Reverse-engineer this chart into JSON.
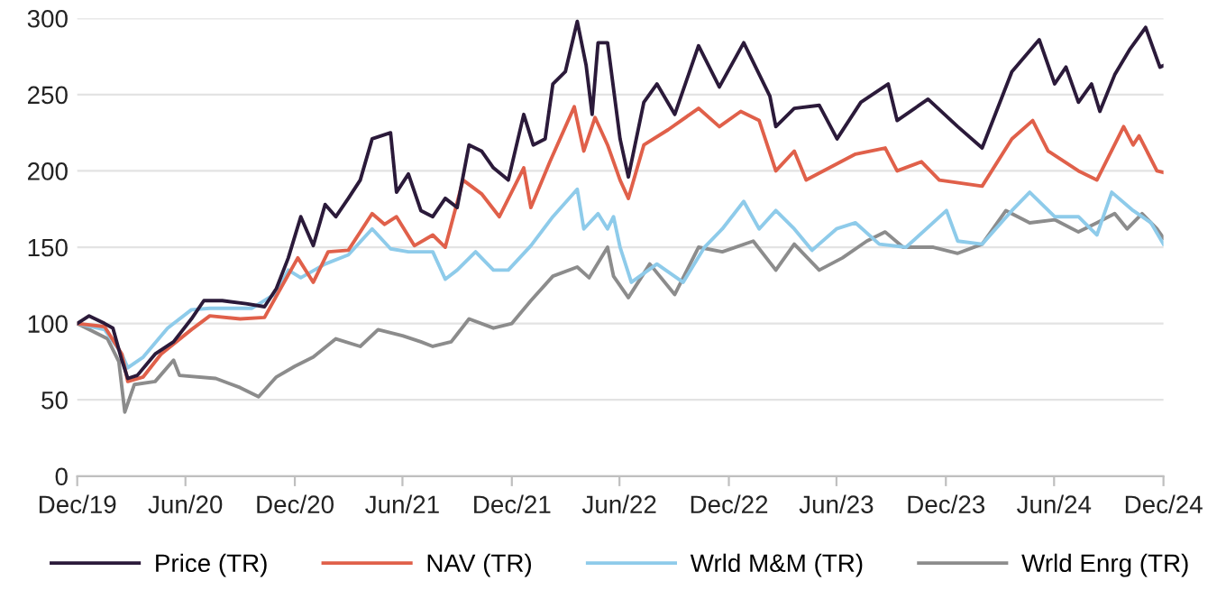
{
  "chart_data": {
    "type": "line",
    "xlim": [
      "2019-12-31",
      "2024-12-31"
    ],
    "xticks": [
      {
        "value": "2019-12-31",
        "label": "Dec/19"
      },
      {
        "value": "2020-06-30",
        "label": "Jun/20"
      },
      {
        "value": "2020-12-31",
        "label": "Dec/20"
      },
      {
        "value": "2021-06-30",
        "label": "Jun/21"
      },
      {
        "value": "2021-12-31",
        "label": "Dec/21"
      },
      {
        "value": "2022-06-30",
        "label": "Jun/22"
      },
      {
        "value": "2022-12-31",
        "label": "Dec/22"
      },
      {
        "value": "2023-06-30",
        "label": "Jun/23"
      },
      {
        "value": "2023-12-31",
        "label": "Dec/23"
      },
      {
        "value": "2024-06-30",
        "label": "Jun/24"
      },
      {
        "value": "2024-12-31",
        "label": "Dec/24"
      }
    ],
    "ylim": [
      0,
      300
    ],
    "yticks": [
      0,
      50,
      100,
      150,
      200,
      250,
      300
    ],
    "grid": "y",
    "legend": "bottom",
    "marker": "none",
    "line_style": "solid",
    "series": [
      {
        "name": "Price (TR)",
        "color": "#2b1a3a",
        "x": [
          "2019-12-31",
          "2020-01-20",
          "2020-02-15",
          "2020-02-29",
          "2020-03-15",
          "2020-03-25",
          "2020-04-10",
          "2020-05-10",
          "2020-06-10",
          "2020-07-10",
          "2020-07-31",
          "2020-08-31",
          "2020-10-10",
          "2020-11-10",
          "2020-11-30",
          "2020-12-20",
          "2021-01-10",
          "2021-01-31",
          "2021-02-20",
          "2021-03-10",
          "2021-03-31",
          "2021-04-20",
          "2021-05-10",
          "2021-06-10",
          "2021-06-20",
          "2021-07-10",
          "2021-07-31",
          "2021-08-20",
          "2021-09-10",
          "2021-09-30",
          "2021-10-20",
          "2021-11-10",
          "2021-11-30",
          "2021-12-25",
          "2022-01-20",
          "2022-02-05",
          "2022-02-25",
          "2022-03-10",
          "2022-03-31",
          "2022-04-20",
          "2022-05-05",
          "2022-05-15",
          "2022-05-25",
          "2022-06-10",
          "2022-07-01",
          "2022-07-15",
          "2022-08-10",
          "2022-09-01",
          "2022-10-01",
          "2022-11-10",
          "2022-12-15",
          "2023-01-25",
          "2023-03-10",
          "2023-03-20",
          "2023-04-20",
          "2023-06-01",
          "2023-07-01",
          "2023-08-10",
          "2023-09-25",
          "2023-10-10",
          "2023-12-01",
          "2024-01-20",
          "2024-03-01",
          "2024-04-20",
          "2024-06-05",
          "2024-07-01",
          "2024-07-20",
          "2024-08-10",
          "2024-09-01",
          "2024-09-15",
          "2024-10-10",
          "2024-11-05",
          "2024-12-01",
          "2024-12-25",
          "2024-12-31"
        ],
        "values": [
          100,
          105,
          100,
          97,
          76,
          64,
          66,
          80,
          88,
          103,
          115,
          115,
          113,
          111,
          123,
          143,
          170,
          151,
          178,
          170,
          182,
          194,
          221,
          225,
          186,
          198,
          174,
          170,
          182,
          176,
          217,
          213,
          202,
          194,
          237,
          217,
          221,
          257,
          265,
          298,
          269,
          237,
          284,
          284,
          221,
          196,
          245,
          257,
          237,
          282,
          255,
          284,
          249,
          229,
          241,
          243,
          221,
          245,
          257,
          233,
          247,
          229,
          215,
          265,
          286,
          257,
          268,
          245,
          257,
          239,
          263,
          280,
          294,
          268,
          269
        ]
      },
      {
        "name": "NAV (TR)",
        "color": "#e0604a",
        "x": [
          "2019-12-31",
          "2020-02-15",
          "2020-03-15",
          "2020-03-25",
          "2020-04-20",
          "2020-05-20",
          "2020-07-10",
          "2020-08-10",
          "2020-09-30",
          "2020-11-10",
          "2020-12-10",
          "2021-01-05",
          "2021-01-31",
          "2021-02-25",
          "2021-03-31",
          "2021-05-10",
          "2021-05-31",
          "2021-06-20",
          "2021-07-20",
          "2021-08-20",
          "2021-09-10",
          "2021-10-10",
          "2021-11-10",
          "2021-12-10",
          "2022-01-20",
          "2022-02-01",
          "2022-03-05",
          "2022-04-15",
          "2022-05-01",
          "2022-05-20",
          "2022-06-10",
          "2022-07-01",
          "2022-07-15",
          "2022-08-10",
          "2022-09-20",
          "2022-11-10",
          "2022-12-15",
          "2023-01-20",
          "2023-02-20",
          "2023-03-20",
          "2023-04-20",
          "2023-05-10",
          "2023-08-01",
          "2023-09-20",
          "2023-10-10",
          "2023-11-20",
          "2023-12-20",
          "2024-03-01",
          "2024-04-20",
          "2024-05-25",
          "2024-06-20",
          "2024-08-10",
          "2024-09-10",
          "2024-10-25",
          "2024-11-10",
          "2024-11-20",
          "2024-12-20",
          "2024-12-31"
        ],
        "values": [
          100,
          98,
          80,
          62,
          65,
          80,
          96,
          105,
          103,
          104,
          125,
          143,
          127,
          147,
          148,
          172,
          165,
          170,
          151,
          158,
          150,
          194,
          185,
          170,
          202,
          176,
          206,
          242,
          213,
          235,
          217,
          194,
          182,
          217,
          227,
          241,
          229,
          239,
          233,
          200,
          213,
          194,
          211,
          215,
          200,
          206,
          194,
          190,
          221,
          233,
          213,
          200,
          194,
          229,
          217,
          223,
          200,
          199
        ]
      },
      {
        "name": "Wrld M&M (TR)",
        "color": "#8ecbea",
        "x": [
          "2019-12-31",
          "2020-02-15",
          "2020-03-15",
          "2020-03-25",
          "2020-04-20",
          "2020-05-31",
          "2020-07-10",
          "2020-08-10",
          "2020-10-20",
          "2020-11-30",
          "2020-12-20",
          "2021-01-10",
          "2021-02-20",
          "2021-03-31",
          "2021-05-10",
          "2021-06-10",
          "2021-07-10",
          "2021-08-20",
          "2021-09-10",
          "2021-09-30",
          "2021-10-31",
          "2021-11-30",
          "2021-12-25",
          "2022-02-01",
          "2022-03-10",
          "2022-04-20",
          "2022-05-01",
          "2022-05-25",
          "2022-06-10",
          "2022-06-20",
          "2022-07-01",
          "2022-07-20",
          "2022-09-01",
          "2022-10-15",
          "2022-11-20",
          "2022-12-20",
          "2023-01-25",
          "2023-02-20",
          "2023-03-20",
          "2023-04-20",
          "2023-05-20",
          "2023-06-30",
          "2023-08-01",
          "2023-09-10",
          "2023-10-25",
          "2024-01-01",
          "2024-01-20",
          "2024-03-01",
          "2024-04-20",
          "2024-05-20",
          "2024-07-01",
          "2024-08-10",
          "2024-09-10",
          "2024-10-05",
          "2024-11-10",
          "2024-12-10",
          "2024-12-31"
        ],
        "values": [
          100,
          96,
          80,
          71,
          78,
          97,
          109,
          110,
          110,
          120,
          135,
          130,
          139,
          145,
          162,
          149,
          147,
          147,
          129,
          135,
          147,
          135,
          135,
          151,
          170,
          188,
          162,
          172,
          162,
          170,
          150,
          127,
          139,
          127,
          150,
          162,
          180,
          162,
          174,
          162,
          148,
          162,
          166,
          152,
          150,
          174,
          154,
          152,
          174,
          186,
          170,
          170,
          158,
          186,
          174,
          166,
          152
        ]
      },
      {
        "name": "Wrld Enrg (TR)",
        "color": "#8c8c8c",
        "x": [
          "2019-12-31",
          "2020-02-20",
          "2020-03-10",
          "2020-03-20",
          "2020-04-05",
          "2020-05-10",
          "2020-06-10",
          "2020-06-20",
          "2020-08-20",
          "2020-09-30",
          "2020-10-31",
          "2020-11-30",
          "2020-12-31",
          "2021-01-31",
          "2021-03-10",
          "2021-04-20",
          "2021-05-20",
          "2021-06-30",
          "2021-07-31",
          "2021-08-20",
          "2021-09-20",
          "2021-10-20",
          "2021-11-30",
          "2021-12-31",
          "2022-02-01",
          "2022-03-10",
          "2022-04-20",
          "2022-05-10",
          "2022-06-10",
          "2022-06-20",
          "2022-07-15",
          "2022-08-20",
          "2022-10-01",
          "2022-11-10",
          "2022-12-20",
          "2023-02-10",
          "2023-03-20",
          "2023-04-20",
          "2023-06-01",
          "2023-07-10",
          "2023-08-20",
          "2023-09-20",
          "2023-10-20",
          "2023-12-10",
          "2024-01-20",
          "2024-03-01",
          "2024-04-10",
          "2024-05-20",
          "2024-07-01",
          "2024-08-10",
          "2024-09-10",
          "2024-10-10",
          "2024-10-31",
          "2024-11-25",
          "2024-12-20",
          "2024-12-31"
        ],
        "values": [
          100,
          90,
          75,
          42,
          60,
          62,
          76,
          66,
          64,
          58,
          52,
          65,
          72,
          78,
          90,
          85,
          96,
          92,
          88,
          85,
          88,
          103,
          97,
          100,
          115,
          131,
          137,
          130,
          150,
          131,
          117,
          139,
          119,
          150,
          147,
          154,
          135,
          152,
          135,
          143,
          154,
          160,
          150,
          150,
          146,
          152,
          174,
          166,
          168,
          160,
          166,
          172,
          162,
          172,
          162,
          156
        ]
      }
    ]
  }
}
